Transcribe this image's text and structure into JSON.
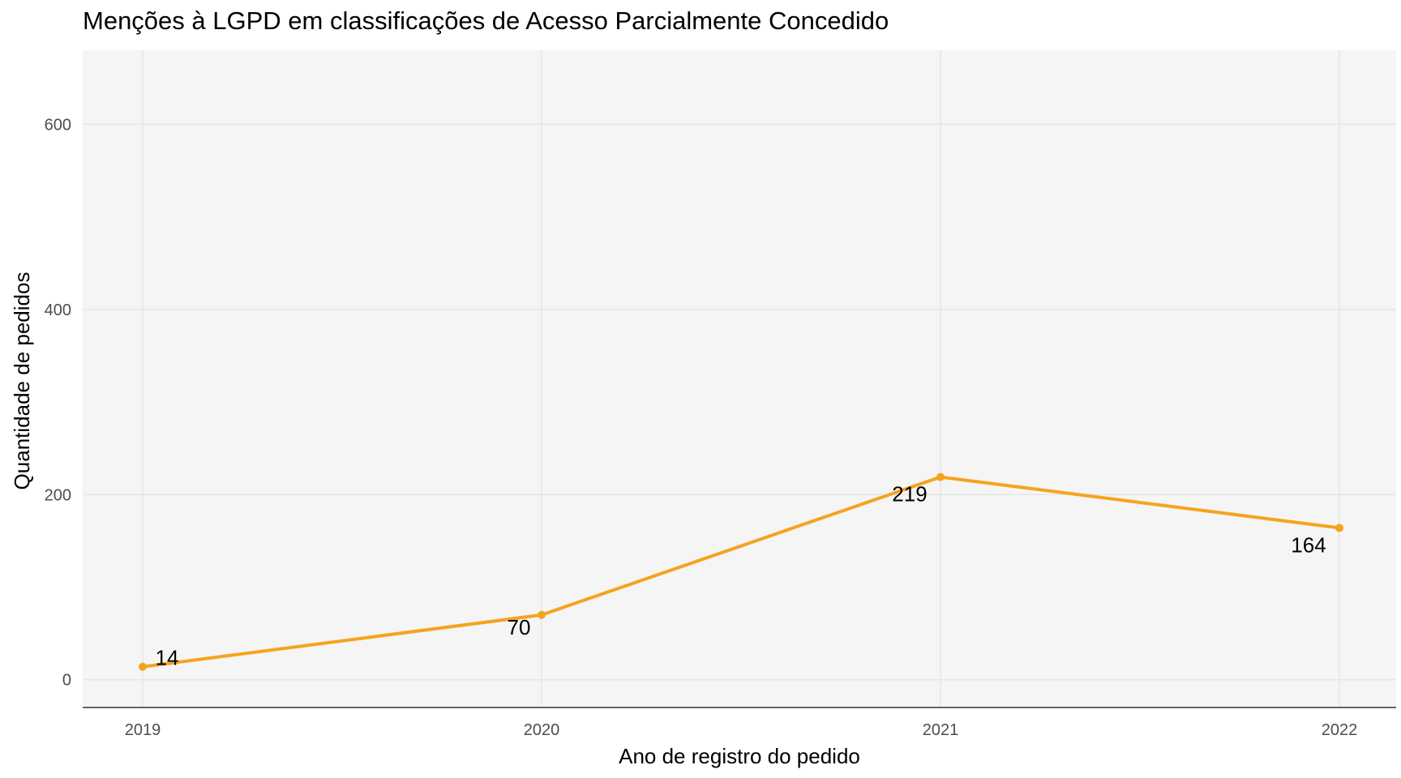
{
  "chart_data": {
    "type": "line",
    "title": "Menções à LGPD em classificações de Acesso Parcialmente Concedido",
    "xlabel": "Ano de registro do pedido",
    "ylabel": "Quantidade de pedidos",
    "x": [
      "2019",
      "2020",
      "2021",
      "2022"
    ],
    "values": [
      14,
      70,
      219,
      164
    ],
    "data_labels": [
      "14",
      "70",
      "219",
      "164"
    ],
    "y_ticks": [
      0,
      200,
      400,
      600
    ],
    "y_tick_labels": [
      "0",
      "200",
      "400",
      "600"
    ],
    "ylim": [
      -30,
      680
    ],
    "grid": true,
    "line_color": "#F5A31F",
    "panel_color": "#F5F5F5",
    "grid_color": "#E6E6E6"
  }
}
